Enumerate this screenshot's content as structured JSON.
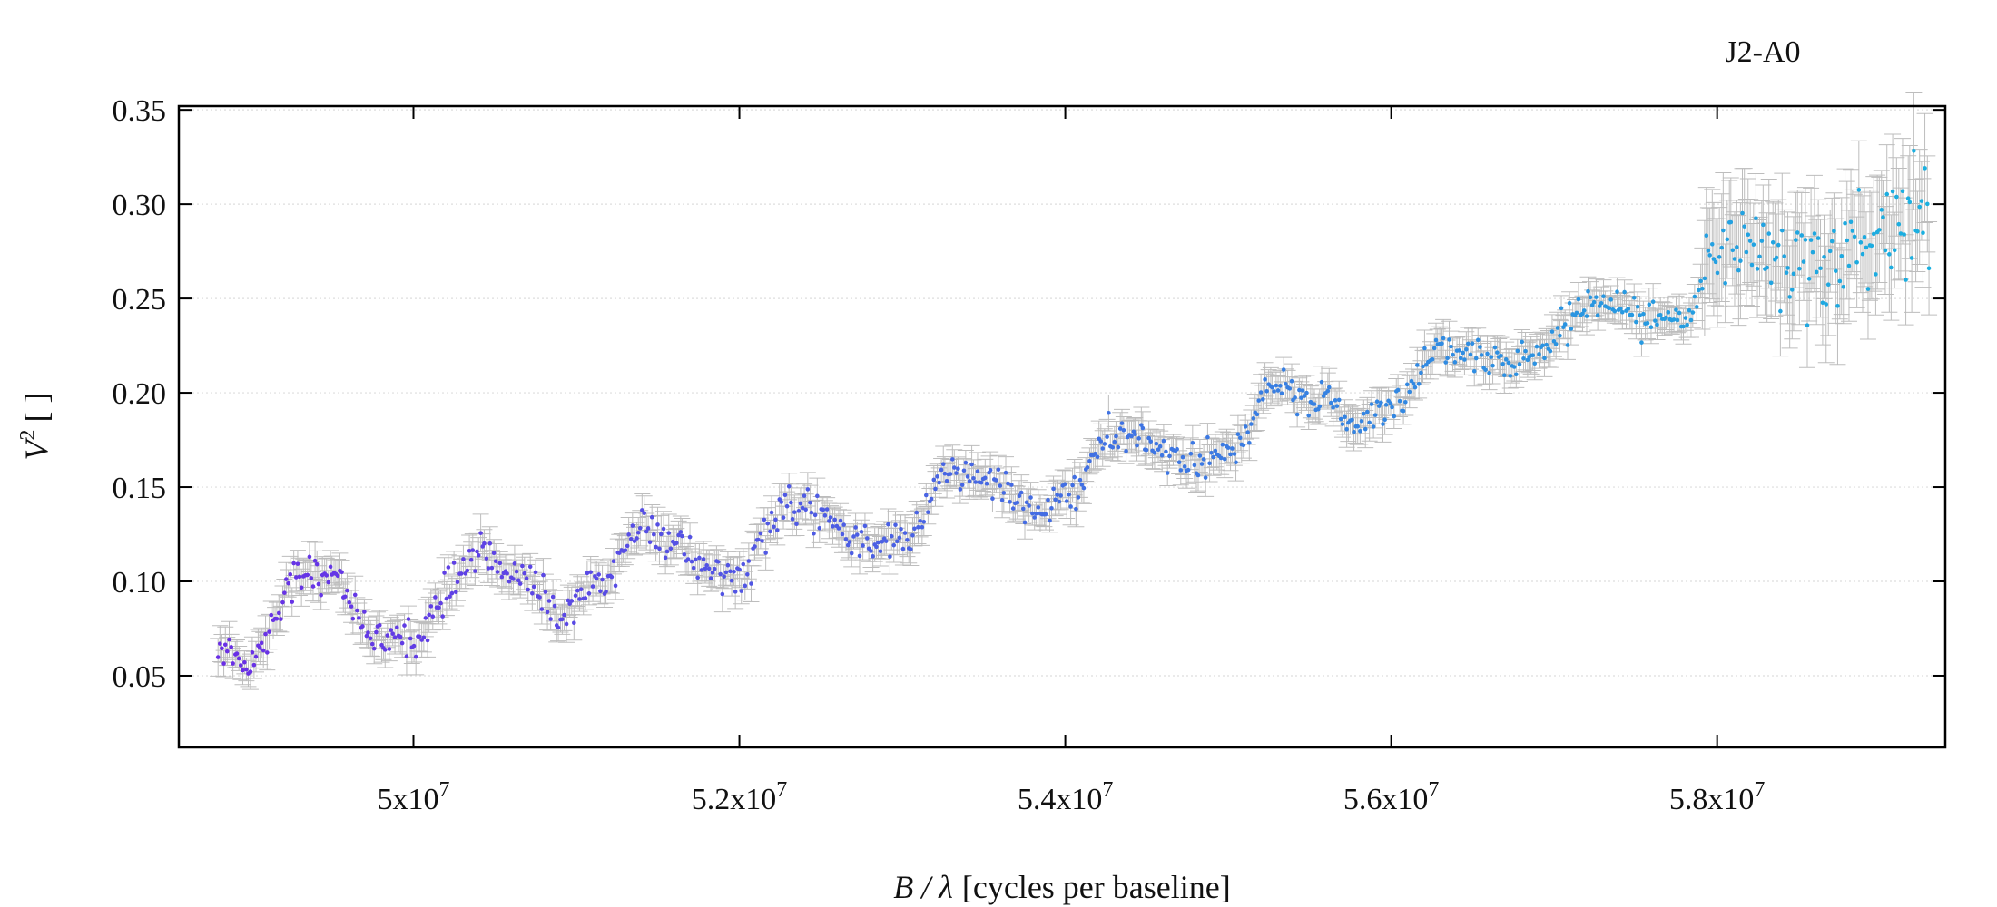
{
  "chart_data": {
    "type": "scatter",
    "title": "J2-A0",
    "xlabel": {
      "italic": "B / λ",
      "text": "[cycles per baseline]"
    },
    "ylabel": {
      "base": "V",
      "sup": "2",
      "unit": "[ ]"
    },
    "xlim": [
      48560000,
      59400000
    ],
    "ylim": [
      0.012,
      0.352
    ],
    "x_ticks": [
      50000000,
      52000000,
      54000000,
      56000000,
      58000000
    ],
    "x_tick_labels": [
      {
        "mant": "5x10",
        "exp": "7"
      },
      {
        "mant": "5.2x10",
        "exp": "7"
      },
      {
        "mant": "5.4x10",
        "exp": "7"
      },
      {
        "mant": "5.6x10",
        "exp": "7"
      },
      {
        "mant": "5.8x10",
        "exp": "7"
      }
    ],
    "y_ticks": [
      0.05,
      0.1,
      0.15,
      0.2,
      0.25,
      0.3,
      0.35
    ],
    "y_tick_labels": [
      "0.05",
      "0.10",
      "0.15",
      "0.20",
      "0.25",
      "0.30",
      "0.35"
    ],
    "grid": {
      "y": true,
      "x": false,
      "style": "dotted"
    },
    "colors": {
      "point_start": "#6a2ee6",
      "point_end": "#1ab0e0",
      "errorbar": "#bdbdbd",
      "axis": "#000000",
      "grid": "#dddddd"
    },
    "series": [
      {
        "x_start": 48800000,
        "x_end": 59300000,
        "trend_x": [
          48800000,
          49000000,
          49300000,
          49500000,
          49800000,
          50000000,
          50400000,
          50600000,
          50900000,
          51100000,
          51400000,
          51600000,
          51800000,
          52000000,
          52300000,
          52500000,
          52800000,
          53000000,
          53300000,
          53500000,
          53800000,
          54000000,
          54300000,
          54500000,
          54800000,
          55000000,
          55300000,
          55500000,
          55800000,
          56000000,
          56300000,
          56500000,
          56700000,
          56900000,
          57200000,
          57400000,
          57600000,
          57800000,
          58000000,
          58200000,
          58500000,
          58800000,
          59000000,
          59300000
        ],
        "trend_v2": [
          0.065,
          0.058,
          0.104,
          0.104,
          0.066,
          0.072,
          0.115,
          0.106,
          0.084,
          0.095,
          0.128,
          0.122,
          0.104,
          0.104,
          0.14,
          0.133,
          0.12,
          0.122,
          0.157,
          0.155,
          0.137,
          0.145,
          0.178,
          0.173,
          0.16,
          0.168,
          0.203,
          0.197,
          0.186,
          0.192,
          0.225,
          0.222,
          0.213,
          0.222,
          0.248,
          0.248,
          0.238,
          0.236,
          0.275,
          0.285,
          0.27,
          0.27,
          0.285,
          0.3
        ],
        "noise_sd": 0.005,
        "noise_sd_high": 0.014,
        "errorbar_half": 0.008,
        "errorbar_half_high": 0.025
      }
    ]
  }
}
